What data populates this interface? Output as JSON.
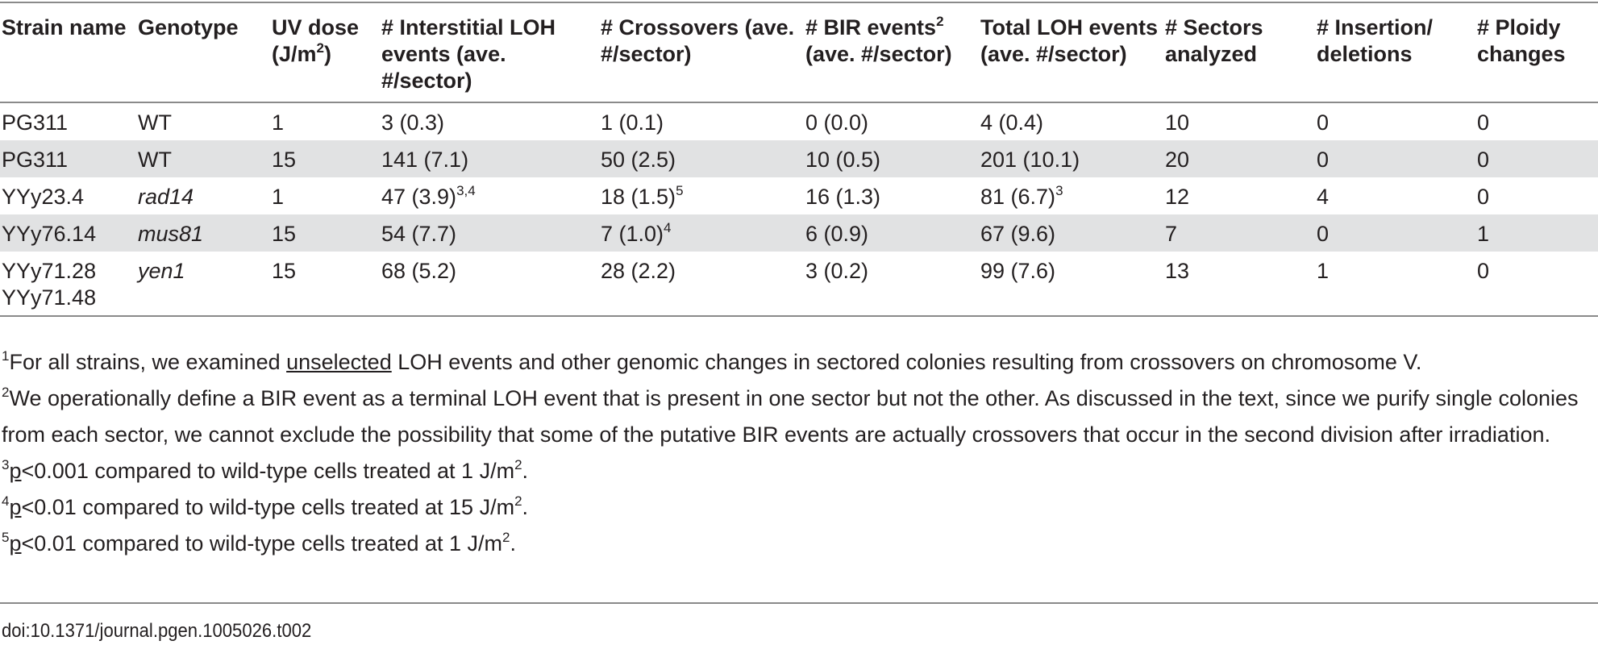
{
  "table": {
    "headers": {
      "strain": "Strain name",
      "genotype": "Genotype",
      "uv_dose_prefix": "UV dose (J/m",
      "uv_dose_sup": "2",
      "uv_dose_suffix": ")",
      "interstitial": "# Interstitial LOH events (ave. #/sector)",
      "crossovers": "# Crossovers (ave. #/sector)",
      "bir_prefix": "# BIR events",
      "bir_sup": "2",
      "bir_suffix": " (ave. #/sector)",
      "total": "Total LOH events (ave. #/sector)",
      "sectors": "# Sectors analyzed",
      "indels": "# Insertion/ deletions",
      "ploidy": "# Ploidy changes"
    },
    "rows": [
      {
        "strain": "PG311",
        "strain2": "",
        "genotype": "WT",
        "uv": "1",
        "interstitial": "3 (0.3)",
        "interstitial_sup": "",
        "crossovers": "1 (0.1)",
        "crossovers_sup": "",
        "bir": "0 (0.0)",
        "total": "4 (0.4)",
        "total_sup": "",
        "sectors": "10",
        "indels": "0",
        "ploidy": "0"
      },
      {
        "strain": "PG311",
        "strain2": "",
        "genotype": "WT",
        "uv": "15",
        "interstitial": "141 (7.1)",
        "interstitial_sup": "",
        "crossovers": "50 (2.5)",
        "crossovers_sup": "",
        "bir": "10 (0.5)",
        "total": "201 (10.1)",
        "total_sup": "",
        "sectors": "20",
        "indels": "0",
        "ploidy": "0"
      },
      {
        "strain": "YYy23.4",
        "strain2": "",
        "genotype": "rad14",
        "uv": "1",
        "interstitial": "47 (3.9)",
        "interstitial_sup": "3,4",
        "crossovers": "18 (1.5)",
        "crossovers_sup": "5",
        "bir": "16 (1.3)",
        "total": "81 (6.7)",
        "total_sup": "3",
        "sectors": "12",
        "indels": "4",
        "ploidy": "0"
      },
      {
        "strain": "YYy76.14",
        "strain2": "",
        "genotype": "mus81",
        "uv": "15",
        "interstitial": "54 (7.7)",
        "interstitial_sup": "",
        "crossovers": "7 (1.0)",
        "crossovers_sup": "4",
        "bir": "6 (0.9)",
        "total": "67 (9.6)",
        "total_sup": "",
        "sectors": "7",
        "indels": "0",
        "ploidy": "1"
      },
      {
        "strain": "YYy71.28",
        "strain2": "YYy71.48",
        "genotype": "yen1",
        "uv": "15",
        "interstitial": "68 (5.2)",
        "interstitial_sup": "",
        "crossovers": "28 (2.2)",
        "crossovers_sup": "",
        "bir": "3 (0.2)",
        "total": "99 (7.6)",
        "total_sup": "",
        "sectors": "13",
        "indels": "1",
        "ploidy": "0"
      }
    ]
  },
  "footnotes": {
    "f1_sup": "1",
    "f1_pre": "For all strains, we examined ",
    "f1_underlined": "unselected",
    "f1_post": " LOH events and other genomic changes in sectored colonies resulting from crossovers on chromosome V.",
    "f2_sup": "2",
    "f2_text": "We operationally define a BIR event as a terminal LOH event that is present in one sector but not the other. As discussed in the text, since we purify single colonies from each sector, we cannot exclude the possibility that some of the putative BIR events are actually crossovers that occur in the second division after irradiation.",
    "f3_sup": "3",
    "f3_p": "p",
    "f3_text": "<0.001 compared to wild-type cells treated at 1 J/m",
    "f3_unit_sup": "2",
    "f3_end": ".",
    "f4_sup": "4",
    "f4_p": "p",
    "f4_text": "<0.01 compared to wild-type cells treated at 15 J/m",
    "f4_unit_sup": "2",
    "f4_end": ".",
    "f5_sup": "5",
    "f5_p": "p",
    "f5_text": "<0.01 compared to wild-type cells treated at 1 J/m",
    "f5_unit_sup": "2",
    "f5_end": "."
  },
  "doi": "doi:10.1371/journal.pgen.1005026.t002",
  "colors": {
    "text": "#231f20",
    "row_shade": "#e1e2e3",
    "rule": "#8a8a8a"
  }
}
